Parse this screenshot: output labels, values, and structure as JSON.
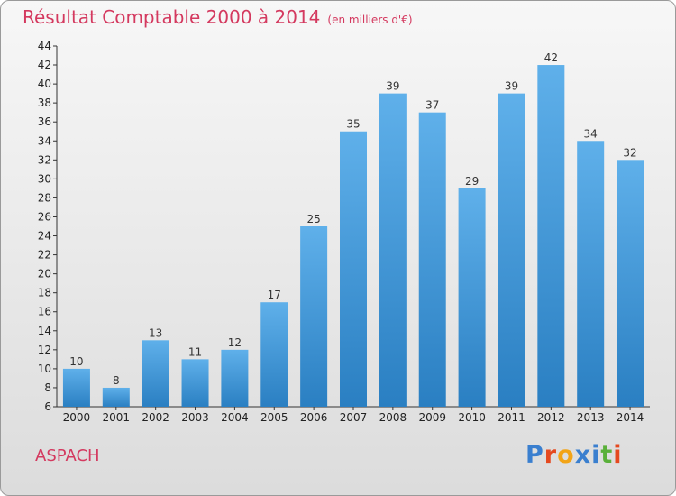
{
  "header": {
    "title": "Résultat Comptable 2000 à 2014",
    "subtitle": "(en milliers d'€)"
  },
  "footer": {
    "commune": "ASPACH",
    "logo_letters": [
      "P",
      "r",
      "o",
      "x",
      "i",
      "t",
      "i"
    ]
  },
  "colors": {
    "title": "#d4395f",
    "bar_top": "#5fb0ea",
    "bar_bottom": "#2a7fc2",
    "logo": [
      "#3a7fcf",
      "#e5491f",
      "#f2a417",
      "#3a7fcf",
      "#3a7fcf",
      "#5ab03a",
      "#e5491f"
    ]
  },
  "chart_data": {
    "type": "bar",
    "title": "Résultat Comptable 2000 à 2014",
    "xlabel": "",
    "ylabel": "",
    "categories": [
      "2000",
      "2001",
      "2002",
      "2003",
      "2004",
      "2005",
      "2006",
      "2007",
      "2008",
      "2009",
      "2010",
      "2011",
      "2012",
      "2013",
      "2014"
    ],
    "values": [
      10,
      8,
      13,
      11,
      12,
      17,
      25,
      35,
      39,
      37,
      29,
      39,
      42,
      34,
      32
    ],
    "ylim": [
      6,
      44
    ],
    "yticks": [
      6,
      8,
      10,
      12,
      14,
      16,
      18,
      20,
      22,
      24,
      26,
      28,
      30,
      32,
      34,
      36,
      38,
      40,
      42,
      44
    ],
    "grid": false,
    "data_labels": true
  }
}
